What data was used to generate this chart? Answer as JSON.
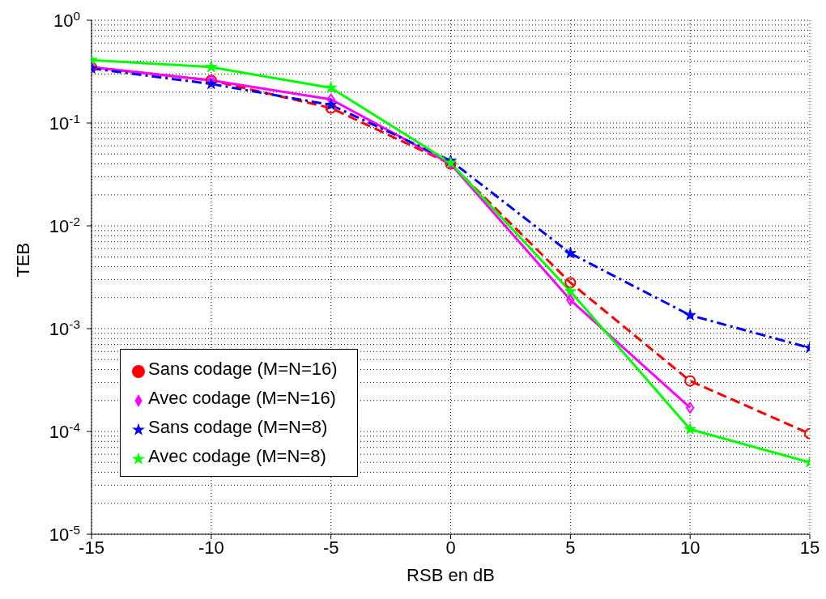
{
  "chart_data": {
    "type": "line",
    "xlabel": "RSB en dB",
    "ylabel": "TEB",
    "x": [
      -15,
      -10,
      -5,
      0,
      5,
      10,
      15
    ],
    "series": [
      {
        "name": "Sans codage (M=N=16)",
        "color": "#ff0000",
        "marker": "circle",
        "line_style": "dashed",
        "values": [
          0.35,
          0.26,
          0.14,
          0.04,
          0.0028,
          0.00031,
          9.5e-05
        ]
      },
      {
        "name": "Avec codage (M=N=16)",
        "color": "#ff00ff",
        "marker": "diamond",
        "line_style": "solid",
        "values": [
          0.35,
          0.26,
          0.17,
          0.04,
          0.0019,
          0.00017,
          null
        ]
      },
      {
        "name": "Sans codage (M=N=8)",
        "color": "#0000ff",
        "marker": "star",
        "line_style": "dashdot",
        "values": [
          0.34,
          0.24,
          0.15,
          0.043,
          0.0054,
          0.00135,
          0.00065
        ]
      },
      {
        "name": "Avec codage (M=N=8)",
        "color": "#00ff00",
        "marker": "star",
        "line_style": "solid",
        "values": [
          0.41,
          0.35,
          0.22,
          0.041,
          0.0023,
          0.000105,
          5e-05
        ]
      }
    ],
    "xlim": [
      -15,
      15
    ],
    "xticks": [
      -15,
      -10,
      -5,
      0,
      5,
      10,
      15
    ],
    "log": "y",
    "ylim": [
      1e-05,
      1
    ],
    "yticks": [
      {
        "value": 1e-05,
        "label": "10$^{-5}$"
      },
      {
        "value": 0.0001,
        "label": "10$^{-4}$"
      },
      {
        "value": 0.001,
        "label": "10$^{-3}$"
      },
      {
        "value": 0.01,
        "label": "10$^{-2}$"
      },
      {
        "value": 0.1,
        "label": "10$^{-1}$"
      },
      {
        "value": 1,
        "label": "10$^{0}$"
      }
    ],
    "grid": true,
    "legend": "bottom left"
  }
}
